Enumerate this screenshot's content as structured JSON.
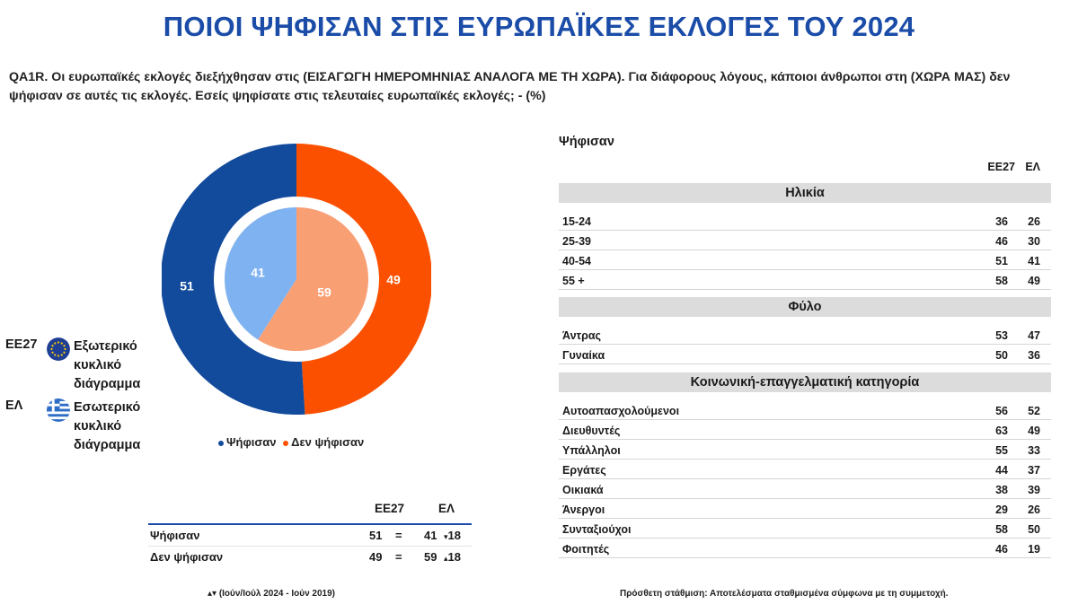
{
  "title": "ΠΟΙΟΙ ΨΗΦΙΣΑΝ ΣΤΙΣ ΕΥΡΩΠΑΪΚΕΣ ΕΚΛΟΓΕΣ ΤΟΥ 2024",
  "question": "QA1R. Οι ευρωπαϊκές εκλογές διεξήχθησαν στις (ΕΙΣΑΓΩΓΗ ΗΜΕΡΟΜΗΝΙΑΣ ΑΝΑΛΟΓΑ ΜΕ ΤΗ ΧΩΡΑ). Για διάφορους λόγους, κάποιοι άνθρωποι στη (ΧΩΡΑ ΜΑΣ) δεν ψήφισαν σε αυτές τις εκλογές. Εσείς ψηφίσατε στις τελευταίες ευρωπαϊκές εκλογές; - (%)",
  "colors": {
    "title": "#1a4ca8",
    "outer_voted": "#124a9c",
    "outer_not": "#fb5000",
    "inner_voted": "#7fb2f0",
    "inner_not": "#f99f74"
  },
  "circle_legend": [
    {
      "code": "ΕΕ27",
      "icon": "eu-flag-icon",
      "desc": "Εξωτερικό κυκλικό διάγραμμα"
    },
    {
      "code": "ΕΛ",
      "icon": "greek-flag-icon",
      "desc": "Εσωτερικό κυκλικό διάγραμμα"
    }
  ],
  "chart_data": [
    {
      "type": "pie",
      "categories": [
        "Ψήφισαν",
        "Δεν ψήφισαν"
      ],
      "series": [
        {
          "name": "ΕΕ27",
          "values": [
            51,
            49
          ]
        },
        {
          "name": "ΕΛ",
          "values": [
            41,
            59
          ]
        }
      ],
      "legend": [
        "Ψήφισαν",
        "Δεν ψήφισαν"
      ]
    },
    {
      "type": "table",
      "columns": [
        "ΕΕ27",
        "ΕΛ"
      ],
      "rows": [
        {
          "label": "Ψήφισαν",
          "eu": "51",
          "eq": "=",
          "gr": "41",
          "change": "▾18"
        },
        {
          "label": "Δεν ψήφισαν",
          "eu": "49",
          "eq": "=",
          "gr": "59",
          "change": "▴18"
        }
      ]
    },
    {
      "type": "table",
      "heading": "Ψήφισαν",
      "columns": [
        "ΕΕ27",
        "ΕΛ"
      ],
      "sections": [
        {
          "name": "Ηλικία",
          "rows": [
            {
              "label": "15-24",
              "eu": "36",
              "gr": "26"
            },
            {
              "label": "25-39",
              "eu": "46",
              "gr": "30"
            },
            {
              "label": "40-54",
              "eu": "51",
              "gr": "41"
            },
            {
              "label": "55 +",
              "eu": "58",
              "gr": "49"
            }
          ]
        },
        {
          "name": "Φύλο",
          "rows": [
            {
              "label": "Άντρας",
              "eu": "53",
              "gr": "47"
            },
            {
              "label": "Γυναίκα",
              "eu": "50",
              "gr": "36"
            }
          ]
        },
        {
          "name": "Κοινωνική-επαγγελματική κατηγορία",
          "rows": [
            {
              "label": "Αυτοαπασχολούμενοι",
              "eu": "56",
              "gr": "52"
            },
            {
              "label": "Διευθυντές",
              "eu": "63",
              "gr": "49"
            },
            {
              "label": "Υπάλληλοι",
              "eu": "55",
              "gr": "33"
            },
            {
              "label": "Εργάτες",
              "eu": "44",
              "gr": "37"
            },
            {
              "label": "Οικιακά",
              "eu": "38",
              "gr": "39"
            },
            {
              "label": "Άνεργοι",
              "eu": "29",
              "gr": "26"
            },
            {
              "label": "Συνταξιούχοι",
              "eu": "58",
              "gr": "50"
            },
            {
              "label": "Φοιτητές",
              "eu": "46",
              "gr": "19"
            }
          ]
        }
      ]
    }
  ],
  "footnote_left": "▴▾ (Ιούν/Ιούλ 2024 - Ιούν 2019)",
  "footnote_right": "Πρόσθετη στάθμιση: Αποτελέσματα σταθμισμένα σύμφωνα με τη συμμετοχή."
}
